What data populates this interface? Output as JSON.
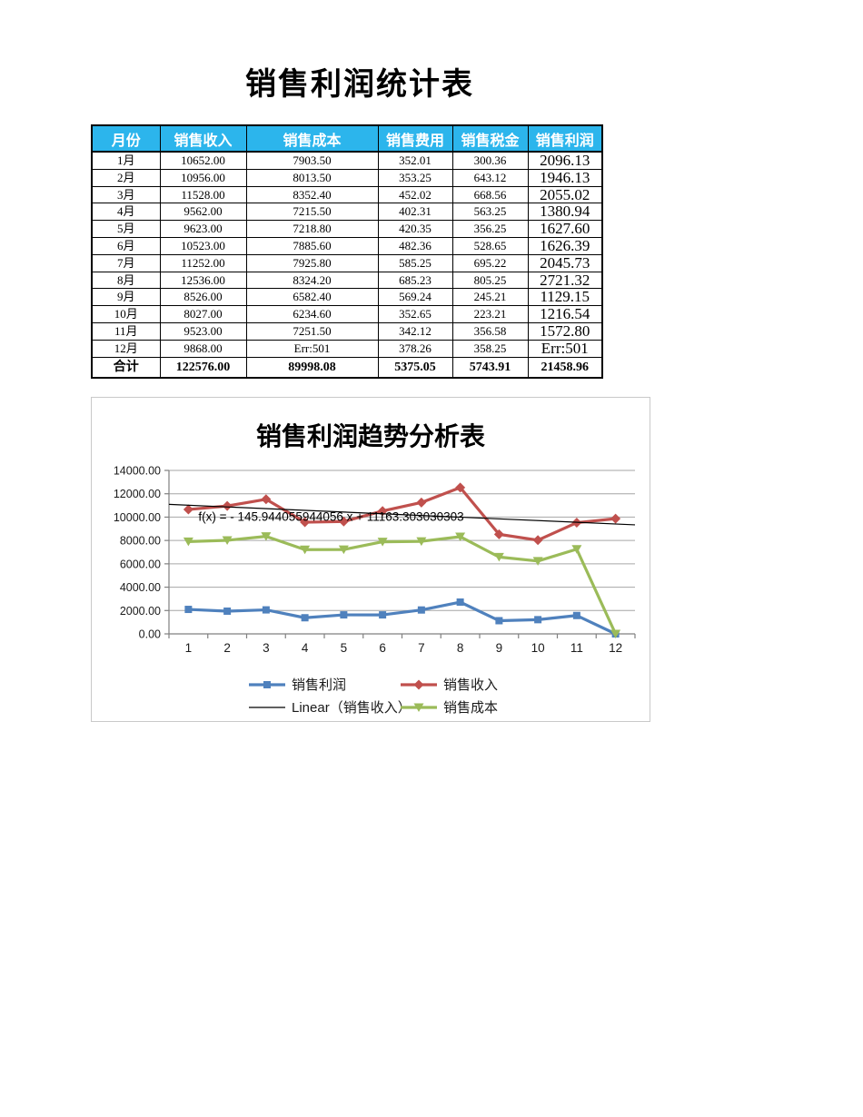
{
  "page_title": "销售利润统计表",
  "table": {
    "headers": [
      "月份",
      "销售收入",
      "销售成本",
      "销售费用",
      "销售税金",
      "销售利润"
    ],
    "rows": [
      [
        "1月",
        "10652.00",
        "7903.50",
        "352.01",
        "300.36",
        "2096.13"
      ],
      [
        "2月",
        "10956.00",
        "8013.50",
        "353.25",
        "643.12",
        "1946.13"
      ],
      [
        "3月",
        "11528.00",
        "8352.40",
        "452.02",
        "668.56",
        "2055.02"
      ],
      [
        "4月",
        "9562.00",
        "7215.50",
        "402.31",
        "563.25",
        "1380.94"
      ],
      [
        "5月",
        "9623.00",
        "7218.80",
        "420.35",
        "356.25",
        "1627.60"
      ],
      [
        "6月",
        "10523.00",
        "7885.60",
        "482.36",
        "528.65",
        "1626.39"
      ],
      [
        "7月",
        "11252.00",
        "7925.80",
        "585.25",
        "695.22",
        "2045.73"
      ],
      [
        "8月",
        "12536.00",
        "8324.20",
        "685.23",
        "805.25",
        "2721.32"
      ],
      [
        "9月",
        "8526.00",
        "6582.40",
        "569.24",
        "245.21",
        "1129.15"
      ],
      [
        "10月",
        "8027.00",
        "6234.60",
        "352.65",
        "223.21",
        "1216.54"
      ],
      [
        "11月",
        "9523.00",
        "7251.50",
        "342.12",
        "356.58",
        "1572.80"
      ],
      [
        "12月",
        "9868.00",
        "Err:501",
        "378.26",
        "358.25",
        "Err:501"
      ]
    ],
    "total_row": [
      "合计",
      "122576.00",
      "89998.08",
      "5375.05",
      "5743.91",
      "21458.96"
    ],
    "header_bg": "#2CB5EC",
    "header_text_color": "#FFFFFF"
  },
  "chart_data": {
    "type": "line",
    "title": "销售利润趋势分析表",
    "categories": [
      "1",
      "2",
      "3",
      "4",
      "5",
      "6",
      "7",
      "8",
      "9",
      "10",
      "11",
      "12"
    ],
    "series": [
      {
        "name": "销售利润",
        "color": "#4F81BD",
        "marker": "square",
        "values": [
          2096.13,
          1946.13,
          2055.02,
          1380.94,
          1627.6,
          1626.39,
          2045.73,
          2721.32,
          1129.15,
          1216.54,
          1572.8,
          0
        ]
      },
      {
        "name": "销售收入",
        "color": "#C0504D",
        "marker": "diamond",
        "values": [
          10652,
          10956,
          11528,
          9562,
          9623,
          10523,
          11252,
          12536,
          8526,
          8027,
          9523,
          9868
        ]
      },
      {
        "name": "销售成本",
        "color": "#9BBB59",
        "marker": "triangle-down",
        "values": [
          7903.5,
          8013.5,
          8352.4,
          7215.5,
          7218.8,
          7885.6,
          7925.8,
          8324.2,
          6582.4,
          6234.6,
          7251.5,
          0
        ]
      }
    ],
    "trendline": {
      "name": "Linear（销售收入）",
      "color": "#000000",
      "slope": -145.944055944056,
      "intercept": 11163.303030303,
      "equation_label": "f(x) = - 145.944055944056 x + 11163.303030303"
    },
    "ylim": [
      0,
      14000
    ],
    "ytick_step": 2000,
    "ytick_labels": [
      "0.00",
      "2000.00",
      "4000.00",
      "6000.00",
      "8000.00",
      "10000.00",
      "12000.00",
      "14000.00"
    ],
    "grid": true,
    "legend_position": "bottom",
    "legend_order": [
      "销售利润",
      "销售收入",
      "Linear（销售收入）",
      "销售成本"
    ]
  }
}
